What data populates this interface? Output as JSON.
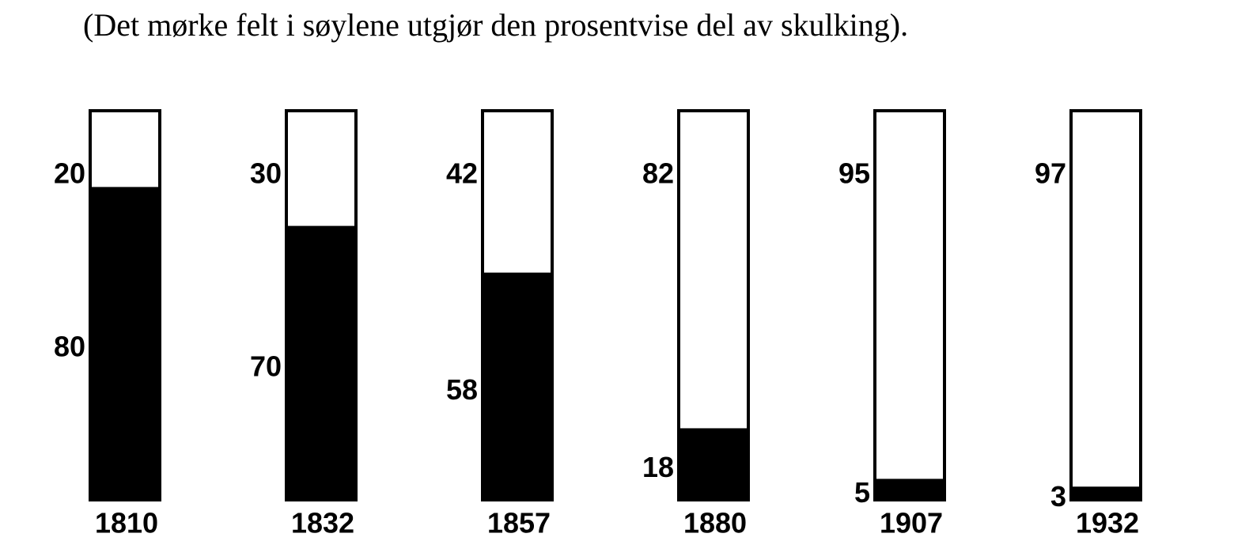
{
  "chart_data": {
    "type": "bar",
    "stacked": true,
    "title": "(Det mørke felt i søylene utgjør den prosentvise del av skulking).",
    "categories": [
      "1810",
      "1832",
      "1857",
      "1880",
      "1907",
      "1932"
    ],
    "series": [
      {
        "color": "#000000",
        "values": [
          80,
          70,
          58,
          18,
          5,
          3
        ]
      },
      {
        "color": "#ffffff",
        "values": [
          20,
          30,
          42,
          82,
          95,
          97
        ]
      }
    ],
    "ylim": [
      0,
      100
    ]
  }
}
